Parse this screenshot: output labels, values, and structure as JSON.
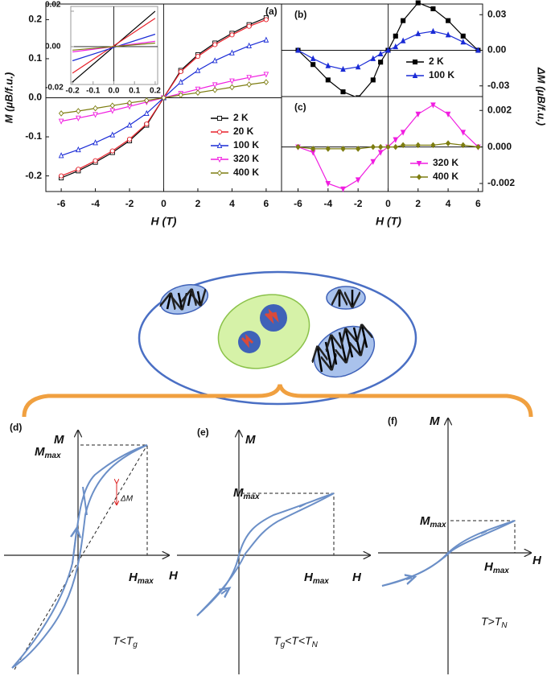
{
  "chart_data": [
    {
      "type": "line",
      "panel_label": "(a)",
      "x_label": "H (T)",
      "y_label": "M (μB/f.u.)",
      "x": [
        -6,
        -5,
        -4,
        -3,
        -2,
        -1,
        0,
        1,
        2,
        3,
        4,
        5,
        6
      ],
      "xlim": [
        -6.9,
        6.9
      ],
      "xticks": [
        -6,
        -4,
        -2,
        0,
        2,
        4,
        6
      ],
      "ylim": [
        -0.24,
        0.24
      ],
      "yticks": [
        -0.2,
        -0.1,
        {
          "value": 0,
          "label": "0.0"
        },
        0.1,
        0.2
      ],
      "open_markers": true,
      "series": [
        {
          "name": "2 K",
          "color": "#000000",
          "marker": "square",
          "values": [
            -0.205,
            -0.187,
            -0.165,
            -0.14,
            -0.11,
            -0.07,
            0,
            0.07,
            0.11,
            0.14,
            0.165,
            0.187,
            0.205
          ]
        },
        {
          "name": "20 K",
          "color": "#e8202a",
          "marker": "circle",
          "values": [
            -0.2,
            -0.183,
            -0.161,
            -0.136,
            -0.106,
            -0.067,
            0,
            0.067,
            0.106,
            0.136,
            0.161,
            0.183,
            0.2
          ]
        },
        {
          "name": "100 K",
          "color": "#1a2bd6",
          "marker": "triangle",
          "values": [
            -0.148,
            -0.133,
            -0.115,
            -0.095,
            -0.07,
            -0.04,
            0,
            0.04,
            0.07,
            0.095,
            0.115,
            0.133,
            0.148
          ]
        },
        {
          "name": "320 K",
          "color": "#f01ee0",
          "marker": "triangle-down",
          "values": [
            -0.06,
            -0.052,
            -0.043,
            -0.033,
            -0.022,
            -0.011,
            0,
            0.011,
            0.022,
            0.033,
            0.043,
            0.052,
            0.06
          ]
        },
        {
          "name": "400 K",
          "color": "#7d7d10",
          "marker": "diamond",
          "values": [
            -0.04,
            -0.034,
            -0.027,
            -0.02,
            -0.013,
            -0.007,
            0,
            0.007,
            0.013,
            0.02,
            0.027,
            0.034,
            0.04
          ]
        }
      ]
    },
    {
      "type": "line",
      "x": [
        -0.2,
        0.2
      ],
      "xlim": [
        -0.208,
        0.212
      ],
      "xticks": [
        -0.2,
        -0.1,
        {
          "value": 0,
          "label": "0.0"
        },
        0.1,
        0.2
      ],
      "ylim": [
        -0.0214,
        0.0227
      ],
      "yticks": [
        -0.02,
        {
          "value": 0,
          "label": "0.00"
        },
        0.02
      ],
      "series": [
        {
          "color": "#000000",
          "values": [
            -0.02,
            0.02
          ]
        },
        {
          "color": "#e8202a",
          "values": [
            -0.015,
            0.016
          ]
        },
        {
          "color": "#1a2bd6",
          "values": [
            -0.008,
            0.007
          ]
        },
        {
          "color": "#f01ee0",
          "values": [
            -0.003,
            0.003
          ]
        },
        {
          "color": "#7d7d10",
          "values": [
            -0.002,
            0.002
          ]
        }
      ]
    },
    {
      "type": "line",
      "panel_label": "(b)",
      "y_label": "ΔM (μB/f.u.)",
      "x": [
        -6,
        -5,
        -4,
        -3,
        -2,
        -1,
        -0.5,
        0,
        0.5,
        1,
        2,
        3,
        4,
        5,
        6
      ],
      "xlim": [
        -7.1,
        6.3
      ],
      "ylim": [
        -0.039,
        0.039
      ],
      "yticks": [
        -0.03,
        {
          "value": 0,
          "label": "0.00"
        },
        0.03
      ],
      "series": [
        {
          "name": "2 K",
          "color": "#000000",
          "marker": "square",
          "values": [
            0,
            -0.012,
            -0.025,
            -0.035,
            -0.04,
            -0.025,
            -0.01,
            0,
            0.012,
            0.025,
            0.04,
            0.035,
            0.025,
            0.012,
            0
          ]
        },
        {
          "name": "100 K",
          "color": "#1a2bd6",
          "marker": "triangle",
          "values": [
            0,
            -0.007,
            -0.013,
            -0.016,
            -0.014,
            -0.007,
            -0.003,
            0,
            0.003,
            0.008,
            0.014,
            0.016,
            0.013,
            0.007,
            0
          ]
        }
      ]
    },
    {
      "type": "line",
      "panel_label": "(c)",
      "x_label": "H (T)",
      "x": [
        -6,
        -5,
        -4,
        -3,
        -2,
        -1,
        -0.5,
        0,
        0.5,
        1,
        2,
        3,
        4,
        5,
        6
      ],
      "xlim": [
        -7.1,
        6.3
      ],
      "xticks": [
        -6,
        -4,
        -2,
        0,
        2,
        4,
        6
      ],
      "ylim": [
        -0.00244,
        0.00276
      ],
      "yticks": [
        -0.002,
        {
          "value": 0,
          "label": "0.000"
        },
        0.002
      ],
      "series": [
        {
          "name": "320 K",
          "color": "#f01ee0",
          "marker": "triangle-down",
          "values": [
            0,
            -0.0003,
            -0.002,
            -0.0023,
            -0.0018,
            -0.0008,
            -0.0003,
            0,
            0.0004,
            0.0008,
            0.0018,
            0.0023,
            0.0018,
            0.0008,
            0
          ]
        },
        {
          "name": "400 K",
          "color": "#7d7d10",
          "marker": "diamond",
          "values": [
            0,
            -0.0001,
            -0.0001,
            -0.0001,
            -0.0001,
            0,
            0,
            0,
            0,
            0.0001,
            0.0001,
            0.0001,
            0.0002,
            0.0001,
            0
          ]
        }
      ]
    }
  ],
  "schematic": {
    "panels": [
      {
        "label": "(d)",
        "axis_y": "M",
        "m_max": {
          "main": "M",
          "sub": "max"
        },
        "h_max": {
          "main": "H",
          "sub": "max"
        },
        "axis_x": "H",
        "delta": "ΔM",
        "condition": [
          {
            "text": "T<T"
          },
          {
            "sub": "g"
          }
        ]
      },
      {
        "label": "(e)",
        "axis_y": "M",
        "m_max": {
          "main": "M",
          "sub": "max"
        },
        "h_max": {
          "main": "H",
          "sub": "max"
        },
        "axis_x": "H",
        "condition": [
          {
            "text": "T"
          },
          {
            "sub": "g"
          },
          {
            "text": "<T<T"
          },
          {
            "sub": "N"
          }
        ]
      },
      {
        "label": "(f)",
        "axis_y": "M",
        "m_max": {
          "main": "M",
          "sub": "max"
        },
        "h_max": {
          "main": "H",
          "sub": "max"
        },
        "axis_x": "H",
        "condition": [
          {
            "text": "T>T"
          },
          {
            "sub": "N"
          }
        ]
      }
    ]
  }
}
